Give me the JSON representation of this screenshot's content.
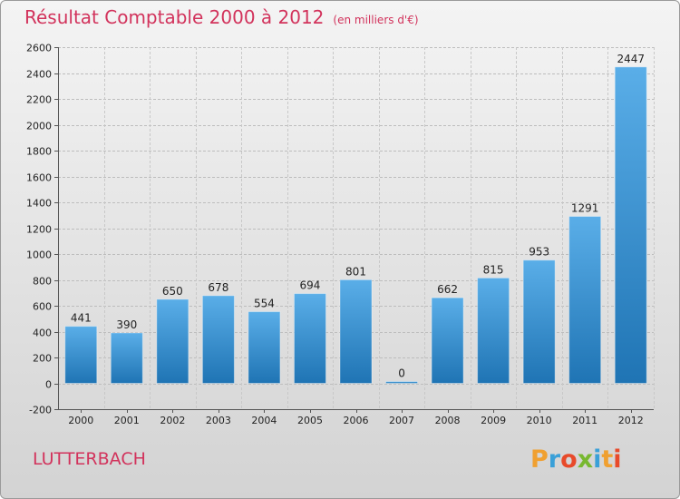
{
  "title": "Résultat Comptable 2000 à 2012",
  "unit": "(en milliers d'€)",
  "commune": "LUTTERBACH",
  "logo_text": "Proxiti",
  "colors": {
    "title": "#d2335c",
    "bar_top": "#5aaee8",
    "bar_bottom": "#1f74b4"
  },
  "chart_data": {
    "type": "bar",
    "title": "Résultat Comptable 2000 à 2012",
    "subtitle": "(en milliers d'€)",
    "categories": [
      "2000",
      "2001",
      "2002",
      "2003",
      "2004",
      "2005",
      "2006",
      "2007",
      "2008",
      "2009",
      "2010",
      "2011",
      "2012"
    ],
    "values": [
      441,
      390,
      650,
      678,
      554,
      694,
      801,
      0,
      662,
      815,
      953,
      1291,
      2447
    ],
    "ylim": [
      -200,
      2600
    ],
    "yticks": [
      -200,
      0,
      200,
      400,
      600,
      800,
      1000,
      1200,
      1400,
      1600,
      1800,
      2000,
      2200,
      2400,
      2600
    ],
    "grid": true
  }
}
